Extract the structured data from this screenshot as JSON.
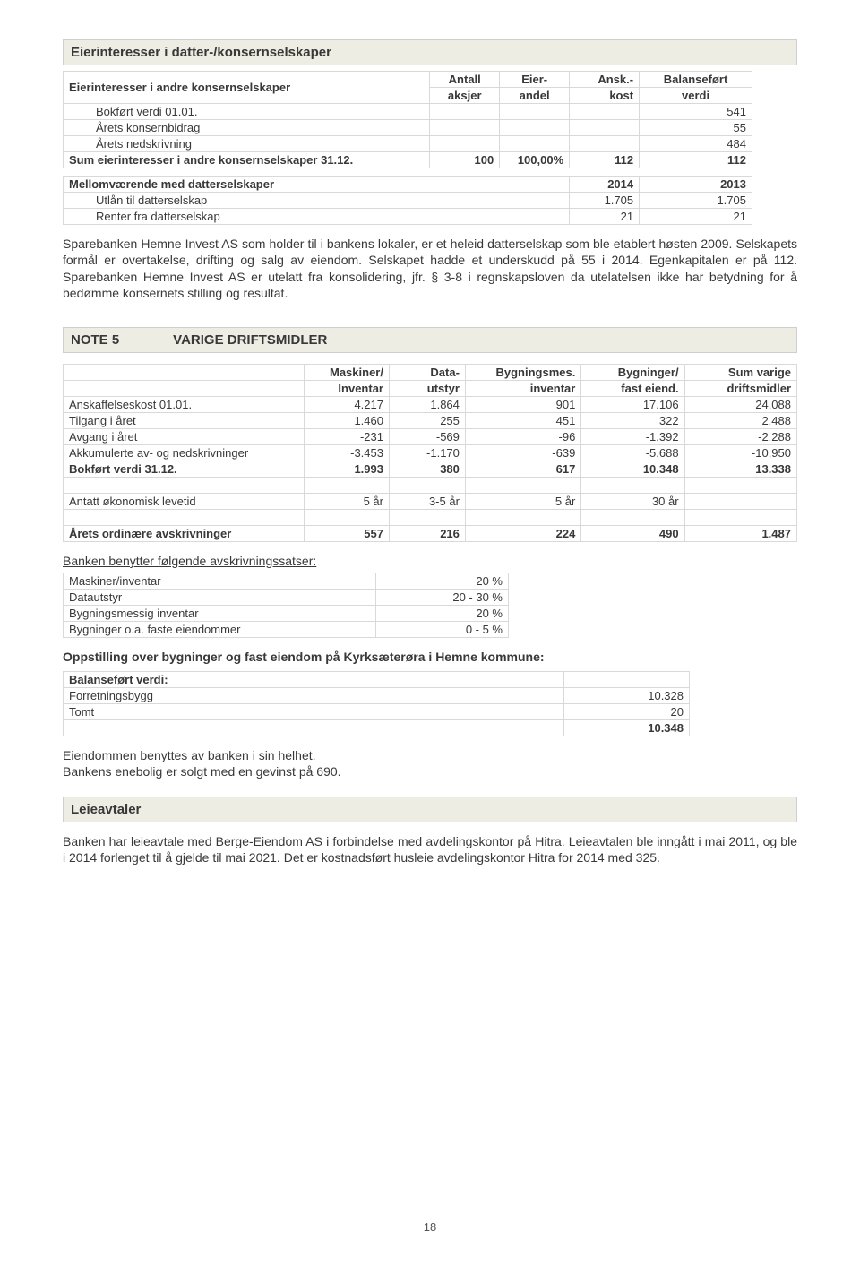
{
  "colors": {
    "header_bg": "#edede3",
    "border": "#cfcfcf",
    "cell_border": "#d9d9d9",
    "text": "#383838"
  },
  "section1": {
    "title": "Eierinteresser i datter-/konsernselskaper",
    "table1": {
      "headers": [
        "Eierinteresser i andre konsernselskaper",
        "Antall aksjer",
        "Eier-andel",
        "Ansk.-kost",
        "Balanseført verdi"
      ],
      "header_lines": [
        [
          "Eierinteresser i andre konsernselskaper",
          "Antall",
          "Eier-",
          "Ansk.-",
          "Balanseført"
        ],
        [
          "",
          "aksjer",
          "andel",
          "kost",
          "verdi"
        ]
      ],
      "rows": [
        {
          "label": "Bokført verdi 01.01.",
          "indent": true,
          "v": [
            "",
            "",
            "",
            "541"
          ]
        },
        {
          "label": "Årets konsernbidrag",
          "indent": true,
          "v": [
            "",
            "",
            "",
            "55"
          ]
        },
        {
          "label": "Årets nedskrivning",
          "indent": true,
          "v": [
            "",
            "",
            "",
            "484"
          ]
        },
        {
          "label": "Sum eierinteresser i andre konsernselskaper 31.12.",
          "indent": false,
          "bold": true,
          "v": [
            "100",
            "100,00%",
            "112",
            "112"
          ]
        }
      ]
    },
    "table2": {
      "headers": [
        "Mellomværende med datterselskaper",
        "2014",
        "2013"
      ],
      "rows": [
        {
          "label": "Utlån til datterselskap",
          "indent": true,
          "v": [
            "1.705",
            "1.705"
          ]
        },
        {
          "label": "Renter fra datterselskap",
          "indent": true,
          "v": [
            "21",
            "21"
          ]
        }
      ]
    },
    "paragraph": "Sparebanken Hemne Invest AS som holder til i bankens lokaler, er et heleid datterselskap som ble etablert høsten 2009. Selskapets formål er overtakelse, drifting og salg av eiendom. Selskapet hadde et underskudd på 55 i 2014. Egenkapitalen er på 112. Sparebanken Hemne Invest AS er utelatt fra konsolidering, jfr. § 3-8 i regnskapsloven da utelatelsen ikke har betydning for å bedømme konsernets stilling og resultat."
  },
  "note5": {
    "num": "NOTE 5",
    "title": "VARIGE DRIFTSMIDLER",
    "table": {
      "header_lines": [
        [
          "",
          "Maskiner/",
          "Data-",
          "Bygningsmes.",
          "Bygninger/",
          "Sum varige"
        ],
        [
          "",
          "Inventar",
          "utstyr",
          "inventar",
          "fast eiend.",
          "driftsmidler"
        ]
      ],
      "rows": [
        {
          "label": "Anskaffelseskost 01.01.",
          "v": [
            "4.217",
            "1.864",
            "901",
            "17.106",
            "24.088"
          ]
        },
        {
          "label": "Tilgang i året",
          "v": [
            "1.460",
            "255",
            "451",
            "322",
            "2.488"
          ]
        },
        {
          "label": "Avgang i året",
          "v": [
            "-231",
            "-569",
            "-96",
            "-1.392",
            "-2.288"
          ]
        },
        {
          "label": "Akkumulerte av- og nedskrivninger",
          "v": [
            "-3.453",
            "-1.170",
            "-639",
            "-5.688",
            "-10.950"
          ]
        },
        {
          "label": "Bokført verdi 31.12.",
          "bold": true,
          "v": [
            "1.993",
            "380",
            "617",
            "10.348",
            "13.338"
          ]
        },
        {
          "spacer": true
        },
        {
          "label": "Antatt økonomisk levetid",
          "v": [
            "5 år",
            "3-5 år",
            "5 år",
            "30 år",
            ""
          ]
        },
        {
          "spacer": true
        },
        {
          "label": "Årets ordinære avskrivninger",
          "bold": true,
          "v": [
            "557",
            "216",
            "224",
            "490",
            "1.487"
          ]
        }
      ]
    },
    "rates_title": "Banken benytter følgende avskrivningssatser:",
    "rates": [
      {
        "label": "Maskiner/inventar",
        "v": "20 %"
      },
      {
        "label": "Datautstyr",
        "v": "20 - 30 %"
      },
      {
        "label": "Bygningsmessig inventar",
        "v": "20 %"
      },
      {
        "label": "Bygninger o.a. faste eiendommer",
        "v": "0 - 5 %"
      }
    ],
    "buildings_title": "Oppstilling over bygninger og fast eiendom på Kyrksæterøra i Hemne kommune:",
    "balance_title": "Balanseført verdi:",
    "buildings": [
      {
        "label": "Forretningsbygg",
        "v": "10.328"
      },
      {
        "label": "Tomt",
        "v": "20"
      }
    ],
    "buildings_total": "10.348",
    "after_text1": "Eiendommen benyttes av banken i sin helhet.",
    "after_text2": "Bankens enebolig er solgt med en gevinst på 690."
  },
  "lease": {
    "title": "Leieavtaler",
    "paragraph": "Banken har leieavtale med Berge-Eiendom AS i forbindelse med avdelingskontor på Hitra. Leieavtalen ble inngått i mai 2011, og ble i 2014 forlenget til å gjelde til mai 2021. Det er kostnadsført husleie avdelingskontor Hitra for 2014 med 325."
  },
  "page_number": "18"
}
